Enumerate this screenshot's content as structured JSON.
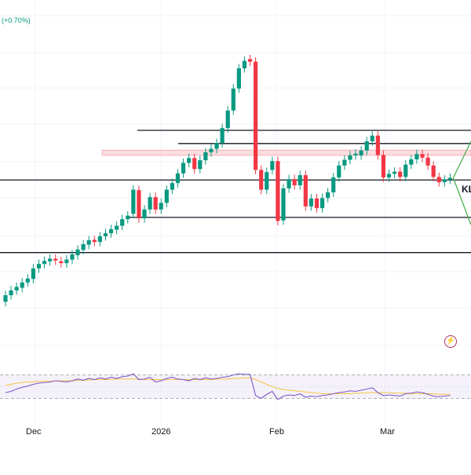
{
  "header": {
    "change_text": "(+0.70%)"
  },
  "x_axis": {
    "labels": [
      "Dec",
      "2026",
      "Feb",
      "Mar"
    ]
  },
  "annotations": {
    "level_label": "KL"
  },
  "icons": {
    "snapshot": "lightning-camera-icon"
  },
  "colors": {
    "bull": "#089981",
    "bear": "#f23645",
    "rsi": "#7e57c2",
    "rsi_ma": "#f5c542",
    "zone": "#f9d0d3",
    "line": "#131722",
    "arrow": "#4caf50"
  },
  "chart_data": {
    "type": "candlestick",
    "title": "",
    "price_unit": "relative",
    "candles": [
      {
        "o": 1.0,
        "c": 2.5
      },
      {
        "o": 2.5,
        "c": 3.6
      },
      {
        "o": 3.6,
        "c": 4.4
      },
      {
        "o": 4.2,
        "c": 5.4
      },
      {
        "o": 5.4,
        "c": 6.3
      },
      {
        "o": 6.2,
        "c": 8.6
      },
      {
        "o": 8.6,
        "c": 9.6
      },
      {
        "o": 9.6,
        "c": 10.3
      },
      {
        "o": 10.2,
        "c": 10.8
      },
      {
        "o": 10.8,
        "c": 10.4
      },
      {
        "o": 10.2,
        "c": 9.8
      },
      {
        "o": 9.8,
        "c": 10.6
      },
      {
        "o": 10.6,
        "c": 11.8
      },
      {
        "o": 11.6,
        "c": 12.9
      },
      {
        "o": 12.8,
        "c": 14.1
      },
      {
        "o": 14.0,
        "c": 15.0
      },
      {
        "o": 15.1,
        "c": 14.6
      },
      {
        "o": 14.6,
        "c": 15.9
      },
      {
        "o": 15.9,
        "c": 16.6
      },
      {
        "o": 16.6,
        "c": 17.5
      },
      {
        "o": 17.4,
        "c": 18.3
      },
      {
        "o": 18.3,
        "c": 19.8
      },
      {
        "o": 19.8,
        "c": 20.6
      },
      {
        "o": 21.0,
        "c": 26.5
      },
      {
        "o": 26.4,
        "c": 20.0
      },
      {
        "o": 20.0,
        "c": 22.0
      },
      {
        "o": 22.0,
        "c": 24.8
      },
      {
        "o": 24.8,
        "c": 22.0
      },
      {
        "o": 22.0,
        "c": 23.5
      },
      {
        "o": 23.5,
        "c": 26.5
      },
      {
        "o": 26.5,
        "c": 28.0
      },
      {
        "o": 28.0,
        "c": 30.2
      },
      {
        "o": 30.2,
        "c": 32.6
      },
      {
        "o": 32.6,
        "c": 33.7
      },
      {
        "o": 33.7,
        "c": 31.2
      },
      {
        "o": 31.2,
        "c": 33.2
      },
      {
        "o": 33.2,
        "c": 35.0
      },
      {
        "o": 35.0,
        "c": 35.8
      },
      {
        "o": 35.8,
        "c": 37.1
      },
      {
        "o": 37.1,
        "c": 40.5
      },
      {
        "o": 40.5,
        "c": 44.5
      },
      {
        "o": 44.5,
        "c": 49.5
      },
      {
        "o": 49.5,
        "c": 54.1
      },
      {
        "o": 54.1,
        "c": 55.8
      },
      {
        "o": 56.2,
        "c": 55.6
      },
      {
        "o": 55.6,
        "c": 31.0
      },
      {
        "o": 31.0,
        "c": 26.5
      },
      {
        "o": 26.5,
        "c": 30.5
      },
      {
        "o": 31.0,
        "c": 33.0
      },
      {
        "o": 33.0,
        "c": 19.4
      },
      {
        "o": 19.5,
        "c": 26.8
      },
      {
        "o": 26.8,
        "c": 28.9
      },
      {
        "o": 28.9,
        "c": 27.5
      },
      {
        "o": 27.5,
        "c": 29.8
      },
      {
        "o": 29.8,
        "c": 22.7
      },
      {
        "o": 22.7,
        "c": 24.5
      },
      {
        "o": 24.5,
        "c": 22.3
      },
      {
        "o": 22.3,
        "c": 24.6
      },
      {
        "o": 24.6,
        "c": 25.9
      },
      {
        "o": 25.9,
        "c": 29.3
      },
      {
        "o": 29.3,
        "c": 32.0
      },
      {
        "o": 32.0,
        "c": 33.3
      },
      {
        "o": 33.3,
        "c": 34.3
      },
      {
        "o": 34.3,
        "c": 34.7
      },
      {
        "o": 34.3,
        "c": 35.4
      },
      {
        "o": 35.4,
        "c": 37.5
      },
      {
        "o": 37.5,
        "c": 38.8
      },
      {
        "o": 38.8,
        "c": 34.4
      },
      {
        "o": 34.4,
        "c": 29.3
      },
      {
        "o": 29.3,
        "c": 30.1
      },
      {
        "o": 30.1,
        "c": 30.6
      },
      {
        "o": 30.6,
        "c": 29.4
      },
      {
        "o": 29.4,
        "c": 32.2
      },
      {
        "o": 32.2,
        "c": 33.4
      },
      {
        "o": 33.4,
        "c": 34.6
      },
      {
        "o": 34.6,
        "c": 33.8
      },
      {
        "o": 33.8,
        "c": 32.0
      },
      {
        "o": 32.0,
        "c": 29.4
      },
      {
        "o": 29.4,
        "c": 28.2
      },
      {
        "o": 28.2,
        "c": 28.8
      },
      {
        "o": 28.8,
        "c": 29.2
      }
    ],
    "horizontal_levels": [
      40.0,
      37.0,
      28.7,
      20.2,
      12.2
    ],
    "resistance_zone": [
      34.3,
      35.5
    ],
    "level_label": "KL",
    "rsi": {
      "bands": [
        70,
        30
      ],
      "values": [
        40,
        42,
        46,
        49,
        51,
        54,
        56,
        57,
        58,
        60,
        59,
        58,
        60,
        63,
        61,
        64,
        62,
        65,
        63,
        66,
        64,
        67,
        68,
        72,
        62,
        63,
        66,
        58,
        60,
        64,
        66,
        63,
        62,
        60,
        64,
        62,
        65,
        63,
        64,
        66,
        67,
        70,
        72,
        71,
        71,
        35,
        30,
        37,
        42,
        28,
        34,
        36,
        35,
        38,
        32,
        34,
        33,
        35,
        36,
        38,
        40,
        41,
        43,
        42,
        44,
        46,
        48,
        40,
        35,
        36,
        35,
        34,
        38,
        39,
        41,
        40,
        37,
        34,
        33,
        34,
        35
      ],
      "ma_values": [
        52,
        54,
        56,
        57,
        58,
        58,
        59,
        59,
        59,
        60,
        60,
        60,
        60,
        61,
        61,
        61,
        62,
        62,
        62,
        62,
        63,
        63,
        63,
        63,
        63,
        62,
        62,
        62,
        62,
        62,
        62,
        62,
        62,
        62,
        62,
        62,
        62,
        62,
        63,
        63,
        63,
        64,
        64,
        65,
        65,
        62,
        58,
        54,
        50,
        47,
        45,
        44,
        43,
        42,
        41,
        40,
        39,
        38,
        38,
        38,
        38,
        38,
        38,
        39,
        39,
        40,
        40,
        40,
        40,
        40,
        39,
        39,
        39,
        38,
        38,
        38,
        38,
        38,
        37,
        37,
        37
      ]
    }
  }
}
